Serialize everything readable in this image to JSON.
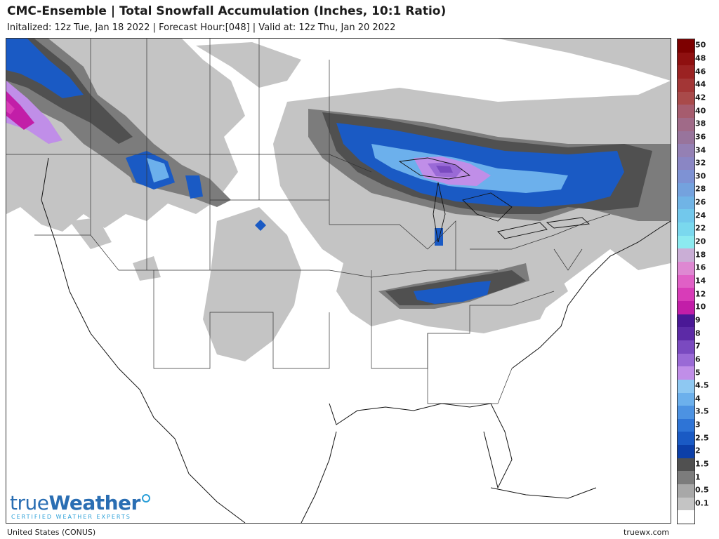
{
  "header": {
    "title": "CMC-Ensemble | Total Snowfall Accumulation (Inches, 10:1 Ratio)",
    "subtitle": "Initalized: 12z Tue, Jan 18 2022  |  Forecast Hour:[048]  |  Valid at: 12z Thu, Jan 20 2022"
  },
  "legend": {
    "levels": [
      {
        "label": "50",
        "color": "#7d0000"
      },
      {
        "label": "48",
        "color": "#8f1010"
      },
      {
        "label": "46",
        "color": "#9b2222"
      },
      {
        "label": "44",
        "color": "#a33636"
      },
      {
        "label": "42",
        "color": "#a94a4a"
      },
      {
        "label": "40",
        "color": "#a65c6e"
      },
      {
        "label": "38",
        "color": "#a06a88"
      },
      {
        "label": "36",
        "color": "#98749c"
      },
      {
        "label": "34",
        "color": "#9480b4"
      },
      {
        "label": "32",
        "color": "#8a86c4"
      },
      {
        "label": "30",
        "color": "#7e92d4"
      },
      {
        "label": "28",
        "color": "#74a2de"
      },
      {
        "label": "26",
        "color": "#70b4e6"
      },
      {
        "label": "24",
        "color": "#72c8ec"
      },
      {
        "label": "22",
        "color": "#7ad8ee"
      },
      {
        "label": "20",
        "color": "#8ceaf0"
      },
      {
        "label": "18",
        "color": "#caaed6"
      },
      {
        "label": "16",
        "color": "#de88d2"
      },
      {
        "label": "14",
        "color": "#e060c6"
      },
      {
        "label": "12",
        "color": "#d83cb8"
      },
      {
        "label": "10",
        "color": "#c21ea8"
      },
      {
        "label": "9",
        "color": "#4a1896"
      },
      {
        "label": "8",
        "color": "#5c2aa6"
      },
      {
        "label": "7",
        "color": "#7a4ac0"
      },
      {
        "label": "6",
        "color": "#9a6ad6"
      },
      {
        "label": "5",
        "color": "#c08ee8"
      },
      {
        "label": "4.5",
        "color": "#8ec8f2"
      },
      {
        "label": "4",
        "color": "#6cb0ec"
      },
      {
        "label": "3.5",
        "color": "#4c92e2"
      },
      {
        "label": "3",
        "color": "#2e74d6"
      },
      {
        "label": "2.5",
        "color": "#1a5ac4"
      },
      {
        "label": "2",
        "color": "#0c3fa8"
      },
      {
        "label": "1.5",
        "color": "#505050"
      },
      {
        "label": "1",
        "color": "#7c7c7c"
      },
      {
        "label": "0.5",
        "color": "#a8a8a8"
      },
      {
        "label": "0.1",
        "color": "#c4c4c4"
      },
      {
        "label": "",
        "color": "#ffffff"
      }
    ]
  },
  "logo": {
    "text_a": "true",
    "text_b": "Weather",
    "tagline": "CERTIFIED WEATHER EXPERTS"
  },
  "footer": {
    "region": "United States (CONUS)",
    "site": "truewx.com"
  }
}
